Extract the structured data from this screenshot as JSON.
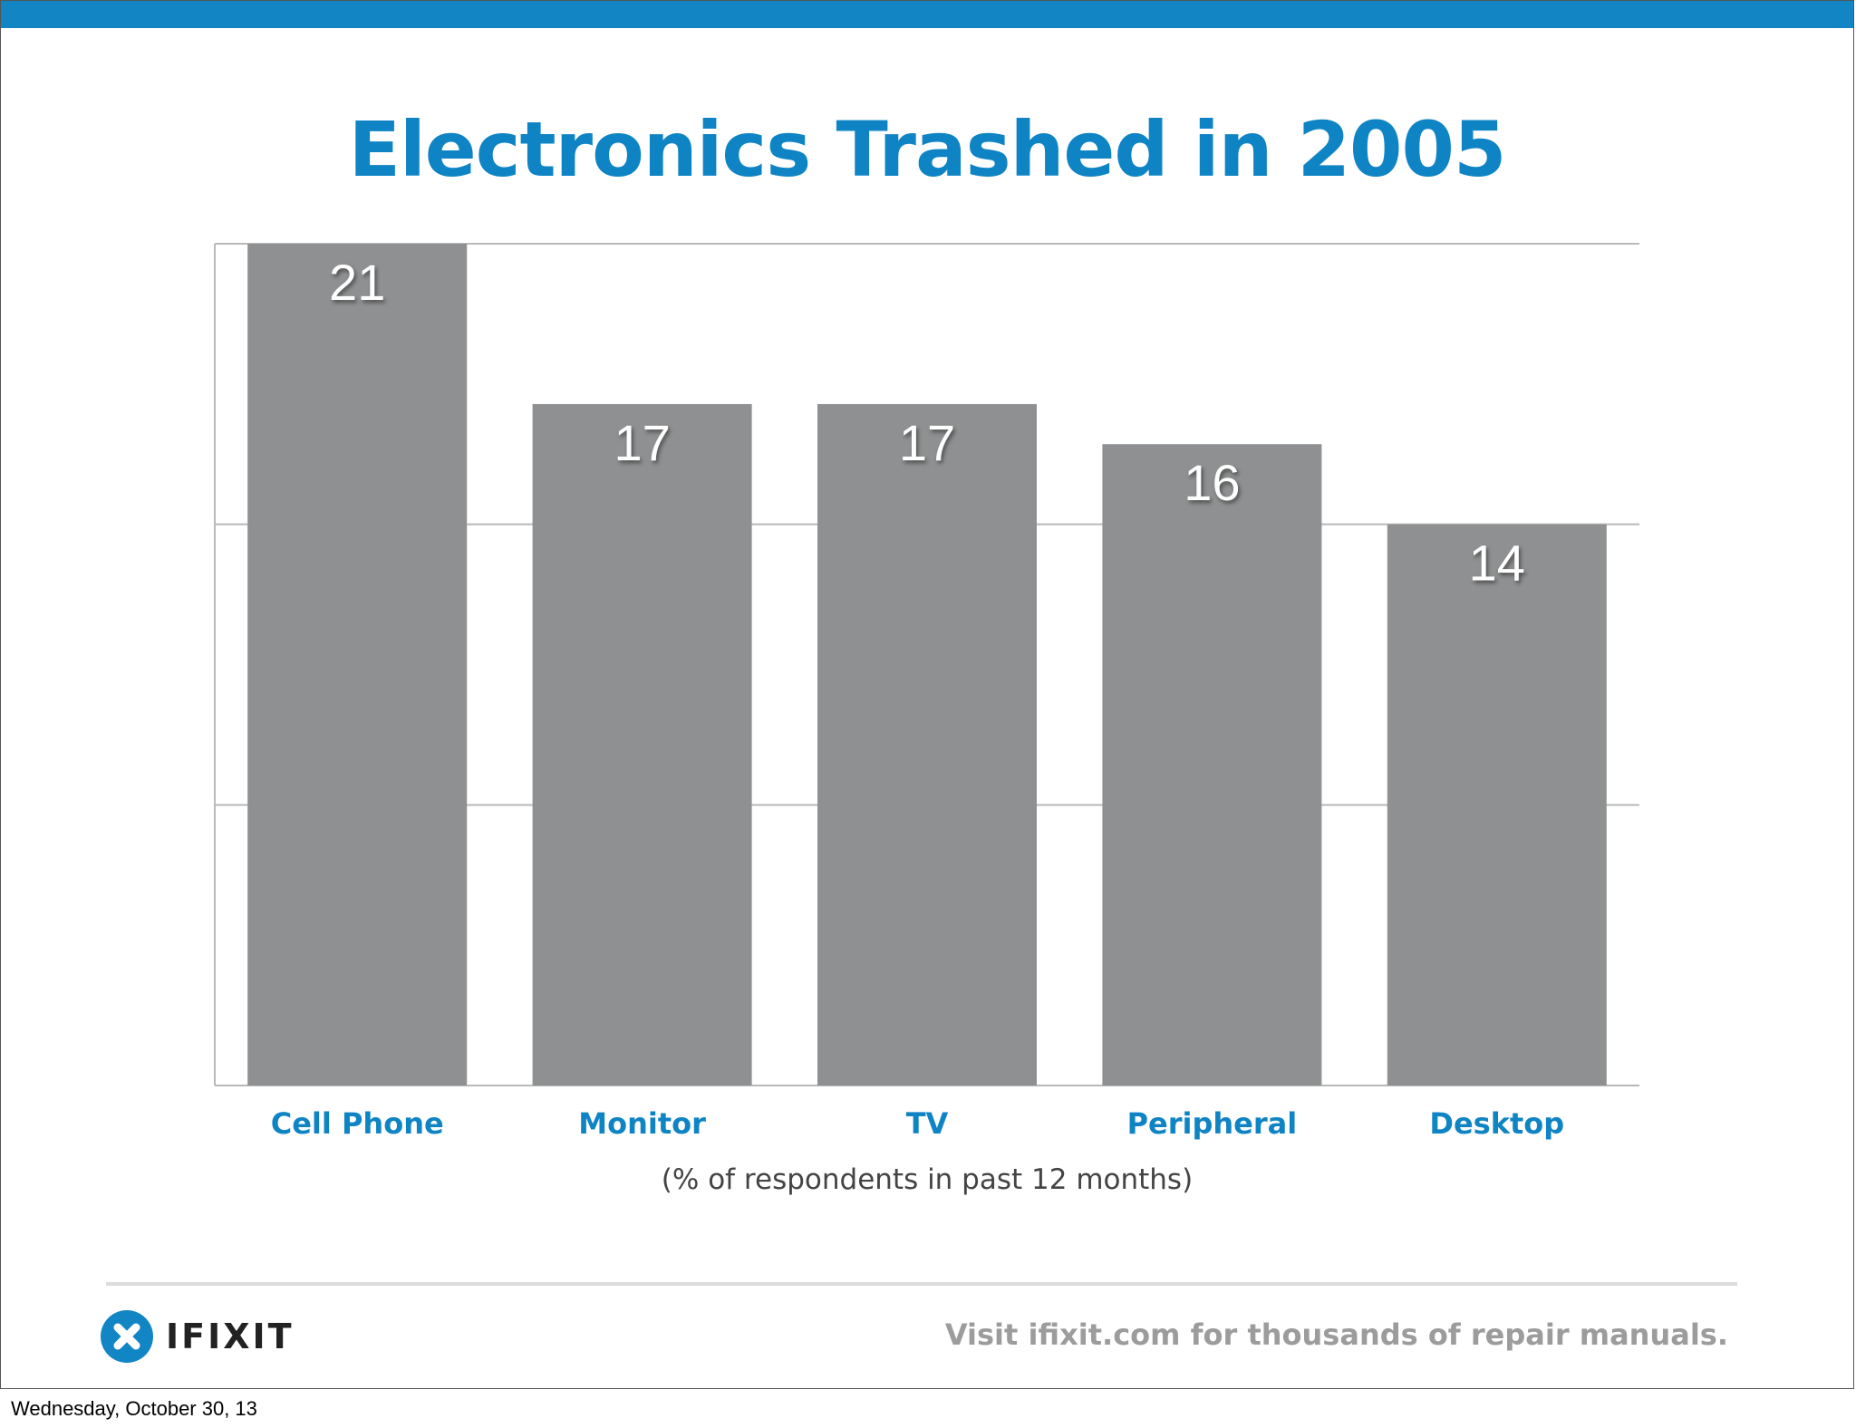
{
  "slide": {
    "title": "Electronics Trashed in 2005",
    "footer_tagline": "Visit ifixit.com for thousands of repair manuals.",
    "logo_text": "IFIXIT",
    "logo_icon": "ifixit-x-badge-icon"
  },
  "caption": {
    "date": "Wednesday, October 30, 13"
  },
  "colors": {
    "accent": "#0f84c4",
    "top_bar": "#1285c5",
    "bar_fill": "#8f9091",
    "gridline": "#b9b9b9"
  },
  "chart_data": {
    "type": "bar",
    "title": "Electronics Trashed in 2005",
    "categories": [
      "Cell Phone",
      "Monitor",
      "TV",
      "Peripheral",
      "Desktop"
    ],
    "values": [
      21,
      17,
      17,
      16,
      14
    ],
    "xlabel": "(% of respondents in past 12 months)",
    "ylabel": "",
    "ylim": [
      0,
      21
    ],
    "grid": true,
    "legend": "none",
    "data_labels": true
  }
}
